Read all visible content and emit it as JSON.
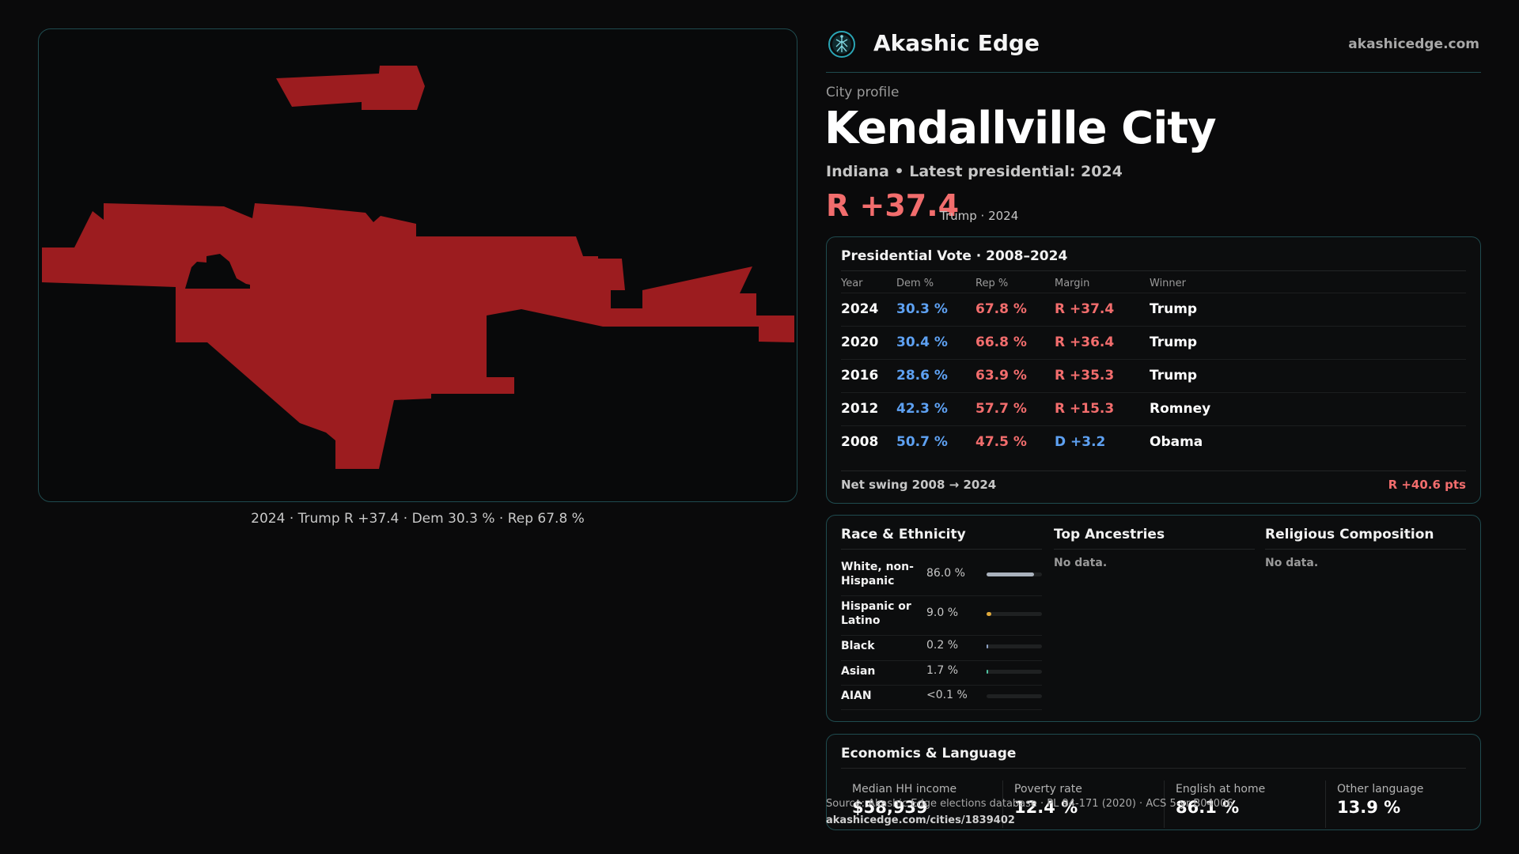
{
  "brand": {
    "name": "Akashic Edge",
    "url": "akashicedge.com",
    "logo_icon": "tree-of-life-icon",
    "accent": "#1f4b4f"
  },
  "map": {
    "caption": "2024 · Trump R +37.4 · Dem 30.3 % · Rep 67.8 %",
    "fill_color": "#9c1c1f"
  },
  "profile": {
    "kicker": "City profile",
    "title": "Kendallville City",
    "subtitle": "Indiana • Latest presidential: 2024",
    "margin": "R +37.4",
    "margin_note": "Trump · 2024"
  },
  "presidential": {
    "title": "Presidential Vote · 2008–2024",
    "headers": {
      "year": "Year",
      "dem": "Dem %",
      "rep": "Rep %",
      "margin": "Margin",
      "winner": "Winner"
    },
    "rows": [
      {
        "year": "2024",
        "dem": "30.3 %",
        "rep": "67.8 %",
        "margin": "R +37.4",
        "winner": "Trump",
        "party": "R"
      },
      {
        "year": "2020",
        "dem": "30.4 %",
        "rep": "66.8 %",
        "margin": "R +36.4",
        "winner": "Trump",
        "party": "R"
      },
      {
        "year": "2016",
        "dem": "28.6 %",
        "rep": "63.9 %",
        "margin": "R +35.3",
        "winner": "Trump",
        "party": "R"
      },
      {
        "year": "2012",
        "dem": "42.3 %",
        "rep": "57.7 %",
        "margin": "R +15.3",
        "winner": "Romney",
        "party": "R"
      },
      {
        "year": "2008",
        "dem": "50.7 %",
        "rep": "47.5 %",
        "margin": "D +3.2",
        "winner": "Obama",
        "party": "D"
      }
    ],
    "swing_label": "Net swing 2008 → 2024",
    "swing_value": "R +40.6 pts"
  },
  "demographics": {
    "race_title": "Race & Ethnicity",
    "race": [
      {
        "label": "White, non-Hispanic",
        "pct": "86.0 %",
        "share": 0.86,
        "color": "#aab2bd"
      },
      {
        "label": "Hispanic or Latino",
        "pct": "9.0 %",
        "share": 0.09,
        "color": "#e0a93b"
      },
      {
        "label": "Black",
        "pct": "0.2 %",
        "share": 0.002,
        "color": "#8fa3c7"
      },
      {
        "label": "Asian",
        "pct": "1.7 %",
        "share": 0.017,
        "color": "#4fc3a1"
      },
      {
        "label": "AIAN",
        "pct": "<0.1 %",
        "share": 0.0,
        "color": "#c07070"
      }
    ],
    "ancestry_title": "Top Ancestries",
    "ancestry_empty": "No data.",
    "religion_title": "Religious Composition",
    "religion_empty": "No data."
  },
  "economics": {
    "title": "Economics & Language",
    "metrics": [
      {
        "label": "Median HH income",
        "value": "$58,939"
      },
      {
        "label": "Poverty rate",
        "value": "12.4 %"
      },
      {
        "label": "English at home",
        "value": "86.1 %"
      },
      {
        "label": "Other language",
        "value": "13.9 %"
      }
    ]
  },
  "footer": {
    "source": "Source: Akashic Edge elections database · PL 94-171 (2020) · ACS 5-yr B04006",
    "link": "akashicedge.com/cities/1839402"
  }
}
